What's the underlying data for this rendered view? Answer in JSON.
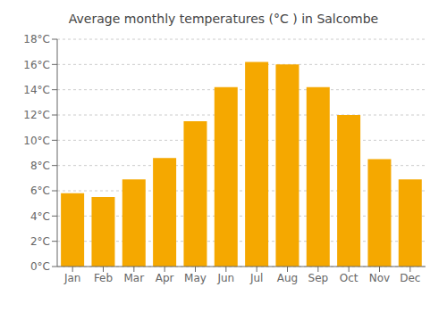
{
  "chart_data": {
    "type": "bar",
    "title": "Average monthly temperatures (°C ) in Salcombe",
    "categories": [
      "Jan",
      "Feb",
      "Mar",
      "Apr",
      "May",
      "Jun",
      "Jul",
      "Aug",
      "Sep",
      "Oct",
      "Nov",
      "Dec"
    ],
    "values": [
      5.8,
      5.5,
      6.9,
      8.6,
      11.5,
      14.2,
      16.2,
      16.0,
      14.2,
      12.0,
      8.5,
      6.9
    ],
    "color": "#F5A800",
    "ylim": [
      0,
      18
    ],
    "yticks": [
      {
        "value": 0,
        "label": "0°C"
      },
      {
        "value": 2,
        "label": "2°C"
      },
      {
        "value": 4,
        "label": "4°C"
      },
      {
        "value": 6,
        "label": "6°C"
      },
      {
        "value": 8,
        "label": "8°C"
      },
      {
        "value": 10,
        "label": "10°C"
      },
      {
        "value": 12,
        "label": "12°C"
      },
      {
        "value": 14,
        "label": "14°C"
      },
      {
        "value": 16,
        "label": "16°C"
      },
      {
        "value": 18,
        "label": "18°C"
      }
    ],
    "grid": true
  }
}
